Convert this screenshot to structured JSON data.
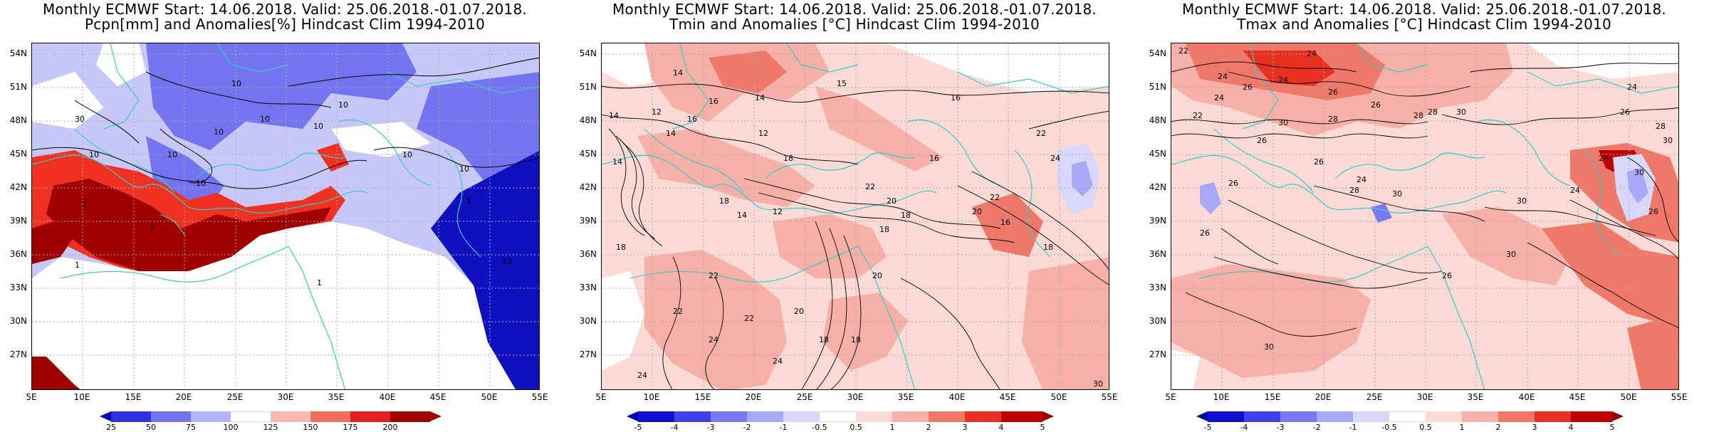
{
  "colors": {
    "coast": "#33cccc",
    "contour": "#000000",
    "gridline": "#aaaaaa",
    "dark_red": "#a00000",
    "red": "#f03020",
    "pink": "#f7b0a8",
    "light_pink": "#fbd9d4",
    "white": "#ffffff",
    "light_blue": "#c8c8f8",
    "blue": "#7474f0",
    "dark_blue": "#1010c0",
    "navy": "#0000a8"
  },
  "axes": {
    "lat_labels": [
      "54N",
      "51N",
      "48N",
      "45N",
      "42N",
      "39N",
      "36N",
      "33N",
      "30N",
      "27N"
    ],
    "lat_values": [
      54,
      51,
      48,
      45,
      42,
      39,
      36,
      33,
      30,
      27
    ],
    "lon_labels": [
      "5E",
      "10E",
      "15E",
      "20E",
      "25E",
      "30E",
      "35E",
      "40E",
      "45E",
      "50E",
      "55E"
    ],
    "lon_values": [
      5,
      10,
      15,
      20,
      25,
      30,
      35,
      40,
      45,
      50,
      55
    ],
    "lon_range": [
      5,
      55
    ],
    "lat_range": [
      25,
      56
    ]
  },
  "panels": [
    {
      "title_line1": "Monthly ECMWF Start: 14.06.2018. Valid: 25.06.2018.-01.07.2018.",
      "title_line2": "Pcpn[mm] and Anomalies[%] Hindcast Clim 1994-2010",
      "colorbar": {
        "labels": [
          "25",
          "50",
          "75",
          "100",
          "125",
          "150",
          "175",
          "200"
        ],
        "colors": [
          "#0000b0",
          "#3030e0",
          "#7474f0",
          "#b4b4f8",
          "#ffffff",
          "#f8b8b0",
          "#f07060",
          "#e02020",
          "#a00000"
        ]
      },
      "contour_labels": [
        "10",
        "10",
        "10",
        "10",
        "10",
        "30",
        "10",
        "10",
        "10",
        "10",
        "10",
        "1",
        "1",
        "1",
        "1",
        "1",
        "10"
      ]
    },
    {
      "title_line1": "Monthly ECMWF Start: 14.06.2018. Valid: 25.06.2018.-01.07.2018.",
      "title_line2": "Tmin and Anomalies [°C] Hindcast Clim 1994-2010",
      "colorbar": {
        "labels": [
          "-5",
          "-4",
          "-3",
          "-2",
          "-1",
          "-0.5",
          "0.5",
          "1",
          "2",
          "3",
          "4",
          "5"
        ],
        "colors": [
          "#0000a0",
          "#1010d0",
          "#4040e8",
          "#7878f0",
          "#a8a8f8",
          "#d8d8fc",
          "#ffffff",
          "#fbd9d4",
          "#f7b0a8",
          "#f07868",
          "#e83020",
          "#c00000",
          "#900000"
        ]
      },
      "contour_labels": [
        "14",
        "16",
        "14",
        "14",
        "12",
        "14",
        "16",
        "14",
        "12",
        "18",
        "15",
        "16",
        "16",
        "22",
        "24",
        "20",
        "18",
        "22",
        "18",
        "14",
        "12",
        "18",
        "20",
        "22",
        "16",
        "18",
        "18",
        "24",
        "22",
        "24",
        "24",
        "22",
        "20",
        "18",
        "18",
        "22",
        "30",
        "20"
      ]
    },
    {
      "title_line1": "Monthly ECMWF Start: 14.06.2018. Valid: 25.06.2018.-01.07.2018.",
      "title_line2": "Tmax and Anomalies [°C] Hindcast Clim 1994-2010",
      "colorbar": {
        "labels": [
          "-5",
          "-4",
          "-3",
          "-2",
          "-1",
          "-0.5",
          "0.5",
          "1",
          "2",
          "3",
          "4",
          "5"
        ],
        "colors": [
          "#0000a0",
          "#1010d0",
          "#4040e8",
          "#7878f0",
          "#a8a8f8",
          "#d8d8fc",
          "#ffffff",
          "#fbd9d4",
          "#f7b0a8",
          "#f07868",
          "#e83020",
          "#c00000",
          "#900000"
        ]
      },
      "contour_labels": [
        "22",
        "24",
        "24",
        "26",
        "24",
        "26",
        "24",
        "22",
        "28",
        "28",
        "26",
        "28",
        "30",
        "24",
        "26",
        "28",
        "30",
        "26",
        "30",
        "26",
        "24",
        "30",
        "26",
        "28",
        "30",
        "24",
        "26",
        "30",
        "24",
        "26",
        "30",
        "26",
        "30"
      ]
    }
  ]
}
